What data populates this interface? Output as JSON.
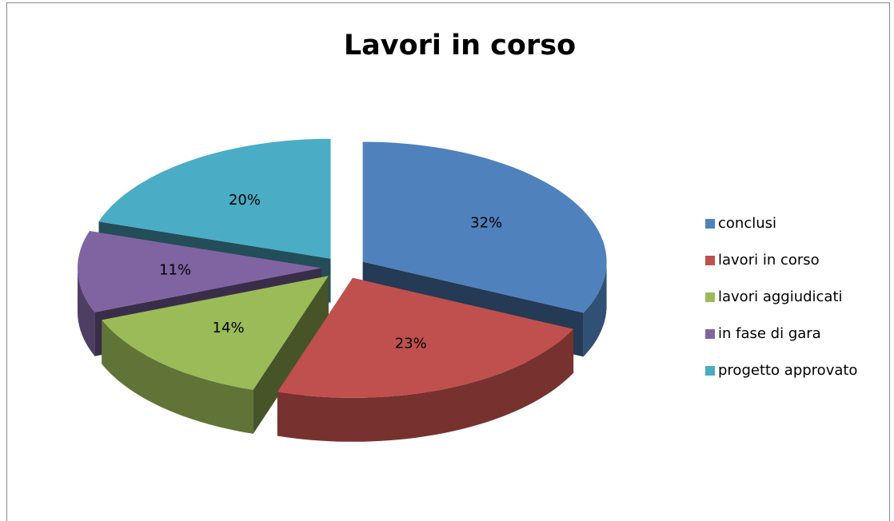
{
  "chart_data": {
    "type": "pie",
    "title": "Lavori in corso",
    "categories": [
      "conclusi",
      "lavori in corso",
      "lavori aggiudicati",
      "in fase di gara",
      "progetto approvato"
    ],
    "values": [
      32,
      23,
      14,
      11,
      20
    ],
    "value_labels": [
      "32%",
      "23%",
      "14%",
      "11%",
      "20%"
    ],
    "colors": [
      "#4f81bd",
      "#c0504d",
      "#9bbb59",
      "#8064a2",
      "#4bacc6"
    ],
    "legend": "right"
  }
}
